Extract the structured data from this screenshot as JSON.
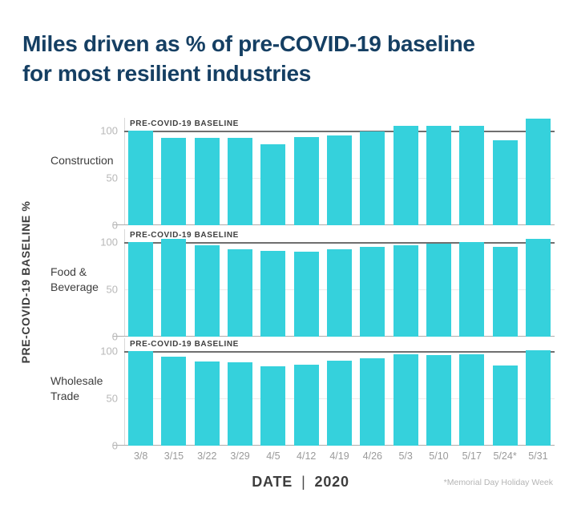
{
  "title": {
    "line1": "Miles driven as % of pre-COVID-19 baseline",
    "line2": "for most resilient industries"
  },
  "y_axis_label": "PRE-COVID-19 BASELINE %",
  "baseline_label": "PRE-COVID-19 BASELINE",
  "x_axis": {
    "label": "DATE",
    "separator": "|",
    "year": "2020",
    "footnote": "*Memorial Day Holiday Week"
  },
  "colors": {
    "bar": "#35D1DC",
    "title": "#153F63",
    "baseline_line": "#6F6F6F",
    "tick_text": "#B8B8B8",
    "date_text": "#9A9A9A",
    "dark_text": "#3D3D3D"
  },
  "chart_data": {
    "type": "bar",
    "title": "Miles driven as % of pre-COVID-19 baseline for most resilient industries",
    "xlabel": "DATE | 2020",
    "ylabel": "PRE-COVID-19 BASELINE %",
    "categories": [
      "3/8",
      "3/15",
      "3/22",
      "3/29",
      "4/5",
      "4/12",
      "4/19",
      "4/26",
      "5/3",
      "5/10",
      "5/17",
      "5/24*",
      "5/31"
    ],
    "series": [
      {
        "name": "Construction",
        "name_lines": [
          "Construction"
        ],
        "values": [
          100,
          92,
          92,
          92,
          86,
          93,
          95,
          99,
          105,
          105,
          105,
          90,
          113
        ]
      },
      {
        "name": "Food & Beverage",
        "name_lines": [
          "Food &",
          "Beverage"
        ],
        "values": [
          100,
          103,
          97,
          92,
          91,
          90,
          92,
          95,
          97,
          98,
          100,
          95,
          103
        ]
      },
      {
        "name": "Wholesale Trade",
        "name_lines": [
          "Wholesale",
          "Trade"
        ],
        "values": [
          100,
          94,
          89,
          88,
          84,
          86,
          90,
          92,
          97,
          96,
          97,
          85,
          101
        ]
      }
    ],
    "yticks": [
      100,
      50,
      0
    ],
    "ylim": [
      0,
      115
    ],
    "baseline": 100,
    "baseline_annotation": "PRE-COVID-19 BASELINE",
    "grid": "horizontal line at 50 only",
    "legend_position": "none",
    "footnote": "*Memorial Day Holiday Week"
  }
}
